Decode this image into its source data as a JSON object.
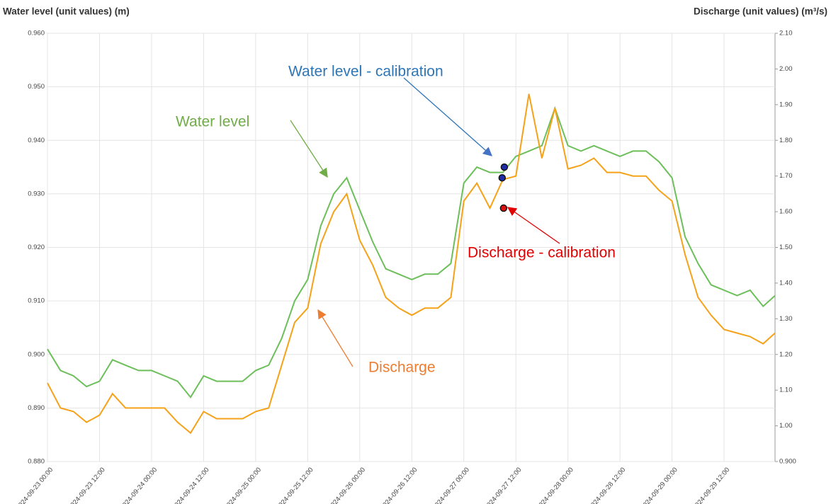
{
  "chart_data": {
    "type": "line",
    "y_axis_title": "Water level (unit values) (m)",
    "y2_axis_title": "Discharge (unit values) (m³/s)",
    "grid": true,
    "xlim": [
      "2024-09-23 00:00",
      "2024-09-29 23:45"
    ],
    "xticks": [
      {
        "value": "2024-09-23 00:00",
        "label": "2024-09-23 00:00"
      },
      {
        "value": "2024-09-23 12:00",
        "label": "2024-09-23 12:00"
      },
      {
        "value": "2024-09-24 00:00",
        "label": "2024-09-24 00:00"
      },
      {
        "value": "2024-09-24 12:00",
        "label": "2024-09-24 12:00"
      },
      {
        "value": "2024-09-25 00:00",
        "label": "2024-09-25 00:00"
      },
      {
        "value": "2024-09-25 12:00",
        "label": "2024-09-25 12:00"
      },
      {
        "value": "2024-09-26 00:00",
        "label": "2024-09-26 00:00"
      },
      {
        "value": "2024-09-26 12:00",
        "label": "2024-09-26 12:00"
      },
      {
        "value": "2024-09-27 00:00",
        "label": "2024-09-27 00:00"
      },
      {
        "value": "2024-09-27 12:00",
        "label": "2024-09-27 12:00"
      },
      {
        "value": "2024-09-28 00:00",
        "label": "2024-09-28 00:00"
      },
      {
        "value": "2024-09-28 12:00",
        "label": "2024-09-28 12:00"
      },
      {
        "value": "2024-09-29 00:00",
        "label": "2024-09-29 00:00"
      },
      {
        "value": "2024-09-29 12:00",
        "label": "2024-09-29 12:00"
      }
    ],
    "ylim": [
      0.88,
      0.96
    ],
    "yticks": [
      {
        "value": 0.88,
        "label": "0.880"
      },
      {
        "value": 0.89,
        "label": "0.890"
      },
      {
        "value": 0.9,
        "label": "0.900"
      },
      {
        "value": 0.91,
        "label": "0.910"
      },
      {
        "value": 0.92,
        "label": "0.920"
      },
      {
        "value": 0.93,
        "label": "0.930"
      },
      {
        "value": 0.94,
        "label": "0.940"
      },
      {
        "value": 0.95,
        "label": "0.950"
      },
      {
        "value": 0.96,
        "label": "0.960"
      }
    ],
    "y2lim": [
      0.9,
      2.1
    ],
    "y2ticks": [
      {
        "value": 0.9,
        "label": "0.900"
      },
      {
        "value": 1.0,
        "label": "1.00"
      },
      {
        "value": 1.1,
        "label": "1.10"
      },
      {
        "value": 1.2,
        "label": "1.20"
      },
      {
        "value": 1.3,
        "label": "1.30"
      },
      {
        "value": 1.4,
        "label": "1.40"
      },
      {
        "value": 1.5,
        "label": "1.50"
      },
      {
        "value": 1.6,
        "label": "1.60"
      },
      {
        "value": 1.7,
        "label": "1.70"
      },
      {
        "value": 1.8,
        "label": "1.80"
      },
      {
        "value": 1.9,
        "label": "1.90"
      },
      {
        "value": 2.0,
        "label": "2.00"
      },
      {
        "value": 2.1,
        "label": "2.10"
      }
    ],
    "x": [
      "2024-09-23 00:00",
      "2024-09-23 03:00",
      "2024-09-23 06:00",
      "2024-09-23 09:00",
      "2024-09-23 12:00",
      "2024-09-23 15:00",
      "2024-09-23 18:00",
      "2024-09-23 21:00",
      "2024-09-24 00:00",
      "2024-09-24 03:00",
      "2024-09-24 06:00",
      "2024-09-24 09:00",
      "2024-09-24 12:00",
      "2024-09-24 15:00",
      "2024-09-24 18:00",
      "2024-09-24 21:00",
      "2024-09-25 00:00",
      "2024-09-25 03:00",
      "2024-09-25 06:00",
      "2024-09-25 09:00",
      "2024-09-25 12:00",
      "2024-09-25 15:00",
      "2024-09-25 18:00",
      "2024-09-25 21:00",
      "2024-09-26 00:00",
      "2024-09-26 03:00",
      "2024-09-26 06:00",
      "2024-09-26 09:00",
      "2024-09-26 12:00",
      "2024-09-26 15:00",
      "2024-09-26 18:00",
      "2024-09-26 21:00",
      "2024-09-27 00:00",
      "2024-09-27 03:00",
      "2024-09-27 06:00",
      "2024-09-27 09:00",
      "2024-09-27 12:00",
      "2024-09-27 15:00",
      "2024-09-27 18:00",
      "2024-09-27 21:00",
      "2024-09-28 00:00",
      "2024-09-28 03:00",
      "2024-09-28 06:00",
      "2024-09-28 09:00",
      "2024-09-28 12:00",
      "2024-09-28 15:00",
      "2024-09-28 18:00",
      "2024-09-28 21:00",
      "2024-09-29 00:00",
      "2024-09-29 03:00",
      "2024-09-29 06:00",
      "2024-09-29 09:00",
      "2024-09-29 12:00",
      "2024-09-29 15:00",
      "2024-09-29 18:00",
      "2024-09-29 21:00",
      "2024-09-29 23:45"
    ],
    "series": [
      {
        "name": "Water level",
        "color": "#6cbf5a",
        "axis": "y",
        "values": [
          0.901,
          0.897,
          0.896,
          0.894,
          0.895,
          0.899,
          0.898,
          0.897,
          0.897,
          0.896,
          0.895,
          0.892,
          0.896,
          0.895,
          0.895,
          0.895,
          0.897,
          0.898,
          0.903,
          0.91,
          0.914,
          0.924,
          0.93,
          0.933,
          0.927,
          0.921,
          0.916,
          0.915,
          0.914,
          0.915,
          0.915,
          0.917,
          0.932,
          0.935,
          0.934,
          0.934,
          0.937,
          0.938,
          0.939,
          0.946,
          0.939,
          0.938,
          0.939,
          0.938,
          0.937,
          0.938,
          0.938,
          0.936,
          0.933,
          0.922,
          0.917,
          0.913,
          0.912,
          0.911,
          0.912,
          0.909,
          0.911
        ]
      },
      {
        "name": "Discharge",
        "color": "#f5a219",
        "axis": "y2",
        "values": [
          1.12,
          1.05,
          1.04,
          1.01,
          1.03,
          1.09,
          1.05,
          1.05,
          1.05,
          1.05,
          1.01,
          0.98,
          1.04,
          1.02,
          1.02,
          1.02,
          1.04,
          1.05,
          1.17,
          1.29,
          1.33,
          1.51,
          1.6,
          1.65,
          1.52,
          1.45,
          1.36,
          1.33,
          1.31,
          1.33,
          1.33,
          1.36,
          1.63,
          1.68,
          1.61,
          1.69,
          1.7,
          1.93,
          1.75,
          1.89,
          1.72,
          1.73,
          1.75,
          1.71,
          1.71,
          1.7,
          1.7,
          1.66,
          1.63,
          1.48,
          1.36,
          1.31,
          1.27,
          1.26,
          1.25,
          1.23,
          1.26
        ]
      },
      {
        "name": "Water level - calibration",
        "color": "#1f2ea8",
        "axis": "y",
        "type": "scatter",
        "x": [
          "2024-09-27 09:20",
          "2024-09-27 08:50"
        ],
        "values": [
          0.935,
          0.933
        ]
      },
      {
        "name": "Discharge - calibration",
        "color": "#e01010",
        "axis": "y2",
        "type": "scatter",
        "x": [
          "2024-09-27 09:10"
        ],
        "values": [
          1.61
        ]
      }
    ]
  }
}
